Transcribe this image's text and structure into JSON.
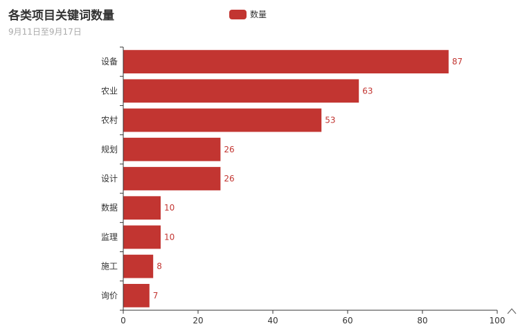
{
  "chart_data": {
    "type": "bar",
    "orientation": "horizontal",
    "title": "各类项目关键词数量",
    "subtitle": "9月11日至9月17日",
    "categories": [
      "设备",
      "农业",
      "农村",
      "规划",
      "设计",
      "数据",
      "监理",
      "施工",
      "询价"
    ],
    "series": [
      {
        "name": "数量",
        "values": [
          87,
          63,
          53,
          26,
          26,
          10,
          10,
          8,
          7
        ]
      }
    ],
    "xlim": [
      0,
      100
    ],
    "xticks": [
      0,
      20,
      40,
      60,
      80,
      100
    ],
    "grid": false,
    "legend_position": "top-center",
    "bar_color": "#c23531",
    "data_labels": true
  },
  "toolbox": {
    "icon": "chevron-up-icon"
  }
}
